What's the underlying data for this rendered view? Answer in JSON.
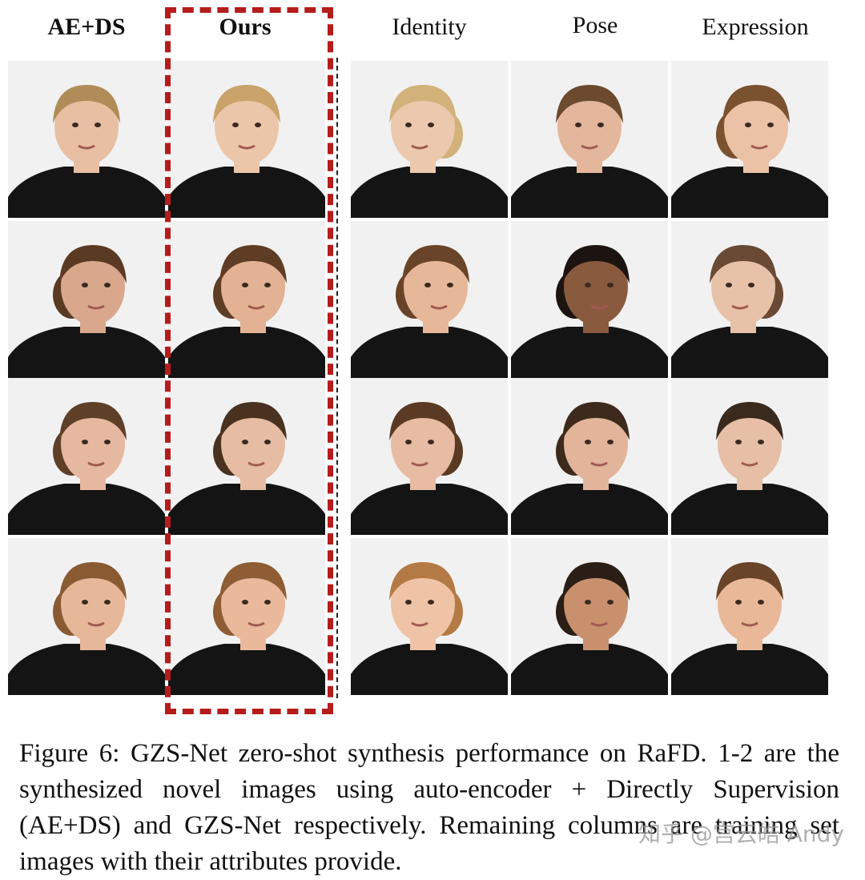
{
  "headers": [
    "AE+DS",
    "Ours",
    "Identity",
    "Pose",
    "Expression"
  ],
  "caption": "Figure 6: GZS-Net zero-shot synthesis performance on RaFD. 1-2 are the synthesized novel images using auto-encoder + Directly Supervision (AE+DS) and GZS-Net respectively. Remaining columns are training set images with their attributes provide.",
  "watermark": "知乎 @宫云皓 Andy",
  "colors": {
    "dash_box": "#b51c1c",
    "shirt": "#141414",
    "background": "#f2f2f2"
  },
  "photos": [
    [
      {
        "hair": "#b08d58",
        "skin": "#e8bfa3",
        "facing": "front"
      },
      {
        "hair": "#c9a36a",
        "skin": "#ecc6a8",
        "facing": "front"
      },
      {
        "hair": "#d2b27a",
        "skin": "#ecc8ad",
        "facing": "left"
      },
      {
        "hair": "#6b4a2e",
        "skin": "#e4b79c",
        "facing": "front"
      },
      {
        "hair": "#7a5230",
        "skin": "#ebc2a5",
        "facing": "right"
      }
    ],
    [
      {
        "hair": "#5a3a22",
        "skin": "#d9a88c",
        "facing": "right"
      },
      {
        "hair": "#5f3d24",
        "skin": "#e3b294",
        "facing": "right"
      },
      {
        "hair": "#6a4428",
        "skin": "#e6b899",
        "facing": "right"
      },
      {
        "hair": "#1c1410",
        "skin": "#8a5a3e",
        "facing": "right"
      },
      {
        "hair": "#6a4a34",
        "skin": "#e8c2a8",
        "facing": "left"
      }
    ],
    [
      {
        "hair": "#5e3f27",
        "skin": "#e7b8a0",
        "facing": "right"
      },
      {
        "hair": "#4a3220",
        "skin": "#e6bca3",
        "facing": "right"
      },
      {
        "hair": "#5a3a22",
        "skin": "#e7bca2",
        "facing": "left"
      },
      {
        "hair": "#3d2a1c",
        "skin": "#e2b49a",
        "facing": "right"
      },
      {
        "hair": "#3a2a1e",
        "skin": "#e6bfa6",
        "facing": "front"
      }
    ],
    [
      {
        "hair": "#8a5a32",
        "skin": "#e7b79a",
        "facing": "right"
      },
      {
        "hair": "#8f5d33",
        "skin": "#eab99c",
        "facing": "right"
      },
      {
        "hair": "#b37a45",
        "skin": "#efc3a6",
        "facing": "left"
      },
      {
        "hair": "#2a1e16",
        "skin": "#c9906e",
        "facing": "right"
      },
      {
        "hair": "#6a4428",
        "skin": "#e8b898",
        "facing": "front"
      }
    ]
  ]
}
